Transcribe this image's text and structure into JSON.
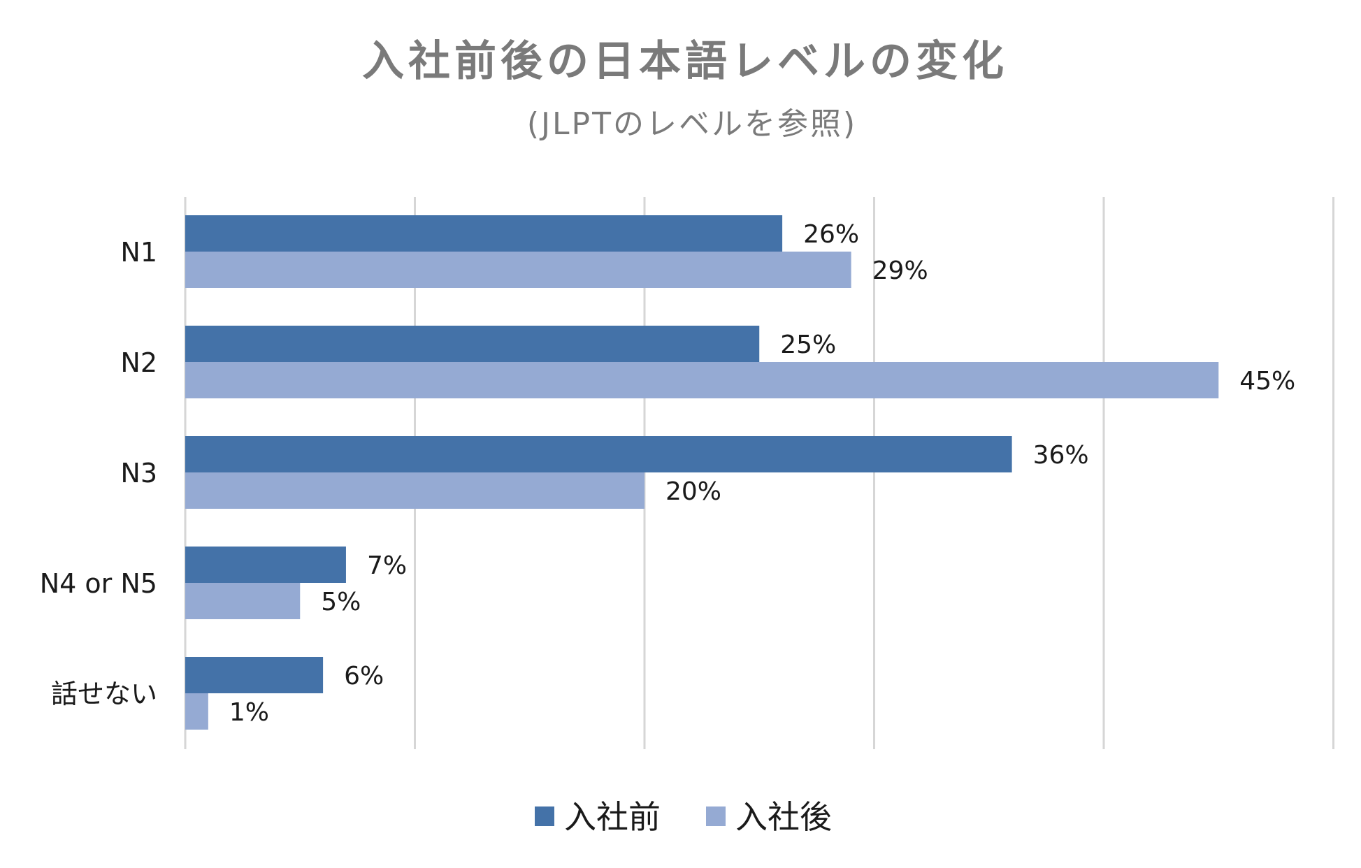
{
  "chart_data": {
    "type": "bar",
    "orientation": "horizontal",
    "title": "入社前後の日本語レベルの変化",
    "subtitle": "(JLPTのレベルを参照)",
    "categories": [
      "N1",
      "N2",
      "N3",
      "N4 or N5",
      "話せない"
    ],
    "series": [
      {
        "name": "入社前",
        "color": "#4472a8",
        "values": [
          26,
          25,
          36,
          7,
          6
        ],
        "labels": [
          "26%",
          "25%",
          "36%",
          "7%",
          "6%"
        ]
      },
      {
        "name": "入社後",
        "color": "#95aad3",
        "values": [
          29,
          45,
          20,
          5,
          1
        ],
        "labels": [
          "29%",
          "45%",
          "20%",
          "5%",
          "1%"
        ]
      }
    ],
    "xlim": [
      0,
      50
    ],
    "x_grid_step": 10,
    "x_tick_labels_shown": false,
    "grid": true,
    "legend_position": "bottom"
  }
}
